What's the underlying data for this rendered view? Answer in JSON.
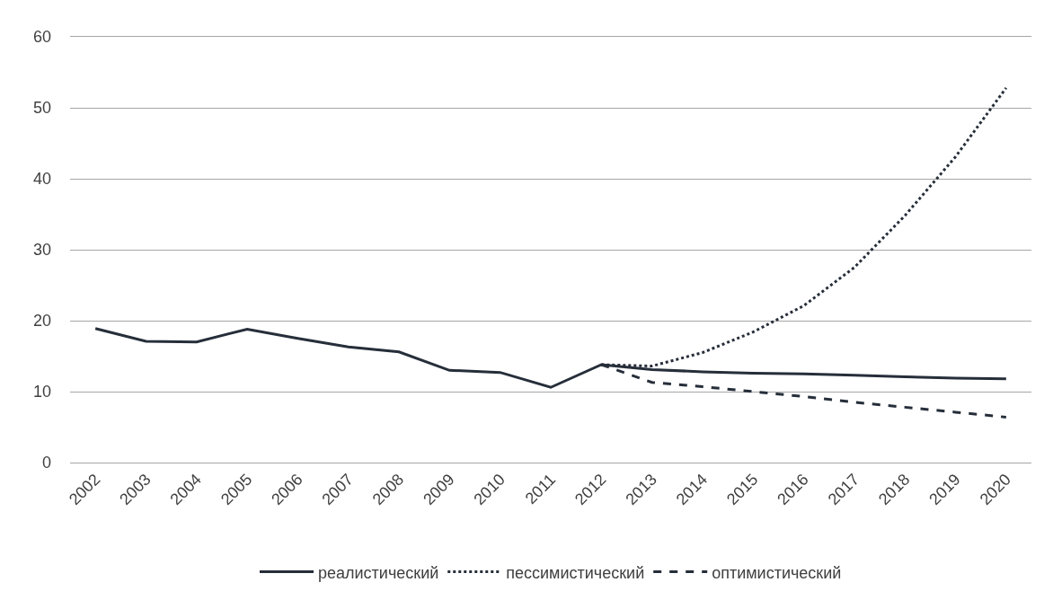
{
  "chart_data": {
    "type": "line",
    "categories": [
      "2002",
      "2003",
      "2004",
      "2005",
      "2006",
      "2007",
      "2008",
      "2009",
      "2010",
      "2011",
      "2012",
      "2013",
      "2014",
      "2015",
      "2016",
      "2017",
      "2018",
      "2019",
      "2020"
    ],
    "series": [
      {
        "name": "реалистический",
        "color": "#262e3a",
        "line_style": "solid",
        "values": [
          18.9,
          17.1,
          17.0,
          18.8,
          17.5,
          16.3,
          15.6,
          13.0,
          12.7,
          10.6,
          13.8,
          13.1,
          12.8,
          12.6,
          12.5,
          12.3,
          12.1,
          11.9,
          11.8
        ]
      },
      {
        "name": "пессимистический",
        "color": "#262e3a",
        "line_style": "dotted",
        "values": [
          null,
          null,
          null,
          null,
          null,
          null,
          null,
          null,
          null,
          null,
          13.8,
          13.6,
          15.5,
          18.4,
          22.1,
          27.5,
          34.8,
          43.1,
          52.8
        ]
      },
      {
        "name": "оптимистический",
        "color": "#262e3a",
        "line_style": "dashed",
        "values": [
          null,
          null,
          null,
          null,
          null,
          null,
          null,
          null,
          null,
          null,
          13.8,
          11.3,
          10.7,
          10.0,
          9.3,
          8.5,
          7.8,
          7.1,
          6.4
        ]
      }
    ],
    "ylim": [
      0,
      60
    ],
    "yticks": [
      0,
      10,
      20,
      30,
      40,
      50,
      60
    ],
    "grid": "y",
    "legend": "bottom"
  }
}
